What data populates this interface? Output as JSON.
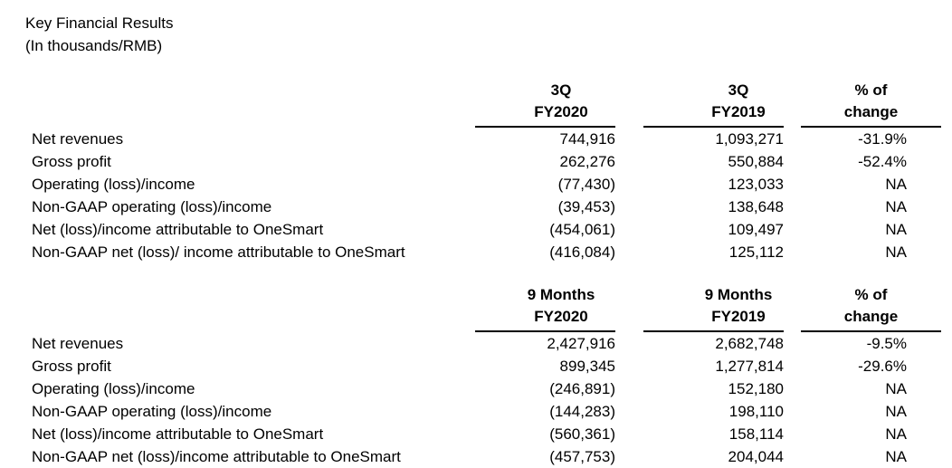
{
  "page": {
    "title": "Key Financial Results",
    "subtitle": "(In thousands/RMB)"
  },
  "colors": {
    "text": "#000000",
    "background": "#ffffff",
    "rule": "#000000"
  },
  "tables": [
    {
      "name": "third-quarter-results",
      "columns": {
        "col1_line1": "3Q",
        "col1_line2": "FY2020",
        "col2_line1": "3Q",
        "col2_line2": "FY2019",
        "col3_line1": "% of",
        "col3_line2": "change"
      },
      "rows": [
        {
          "label": "Net revenues",
          "fy2020": "744,916",
          "fy2019": "1,093,271",
          "change": "-31.9%"
        },
        {
          "label": "Gross profit",
          "fy2020": "262,276",
          "fy2019": "550,884",
          "change": "-52.4%"
        },
        {
          "label": "Operating (loss)/income",
          "fy2020": "(77,430)",
          "fy2019": "123,033",
          "change": "NA"
        },
        {
          "label": "Non-GAAP operating (loss)/income",
          "fy2020": "(39,453)",
          "fy2019": "138,648",
          "change": "NA"
        },
        {
          "label": "Net (loss)/income attributable to OneSmart",
          "fy2020": "(454,061)",
          "fy2019": "109,497",
          "change": "NA"
        },
        {
          "label": "Non-GAAP net (loss)/ income attributable to OneSmart",
          "fy2020": "(416,084)",
          "fy2019": "125,112",
          "change": "NA"
        }
      ]
    },
    {
      "name": "nine-months-results",
      "columns": {
        "col1_line1": "9 Months",
        "col1_line2": "FY2020",
        "col2_line1": "9 Months",
        "col2_line2": "FY2019",
        "col3_line1": "% of",
        "col3_line2": "change"
      },
      "rows": [
        {
          "label": "Net revenues",
          "fy2020": "2,427,916",
          "fy2019": "2,682,748",
          "change": "-9.5%"
        },
        {
          "label": "Gross profit",
          "fy2020": "899,345",
          "fy2019": "1,277,814",
          "change": "-29.6%"
        },
        {
          "label": "Operating (loss)/income",
          "fy2020": "(246,891)",
          "fy2019": "152,180",
          "change": "NA"
        },
        {
          "label": "Non-GAAP operating (loss)/income",
          "fy2020": "(144,283)",
          "fy2019": "198,110",
          "change": "NA"
        },
        {
          "label": "Net (loss)/income attributable to OneSmart",
          "fy2020": "(560,361)",
          "fy2019": "158,114",
          "change": "NA"
        },
        {
          "label": "Non-GAAP net (loss)/income attributable to OneSmart",
          "fy2020": "(457,753)",
          "fy2019": "204,044",
          "change": "NA"
        }
      ]
    }
  ]
}
